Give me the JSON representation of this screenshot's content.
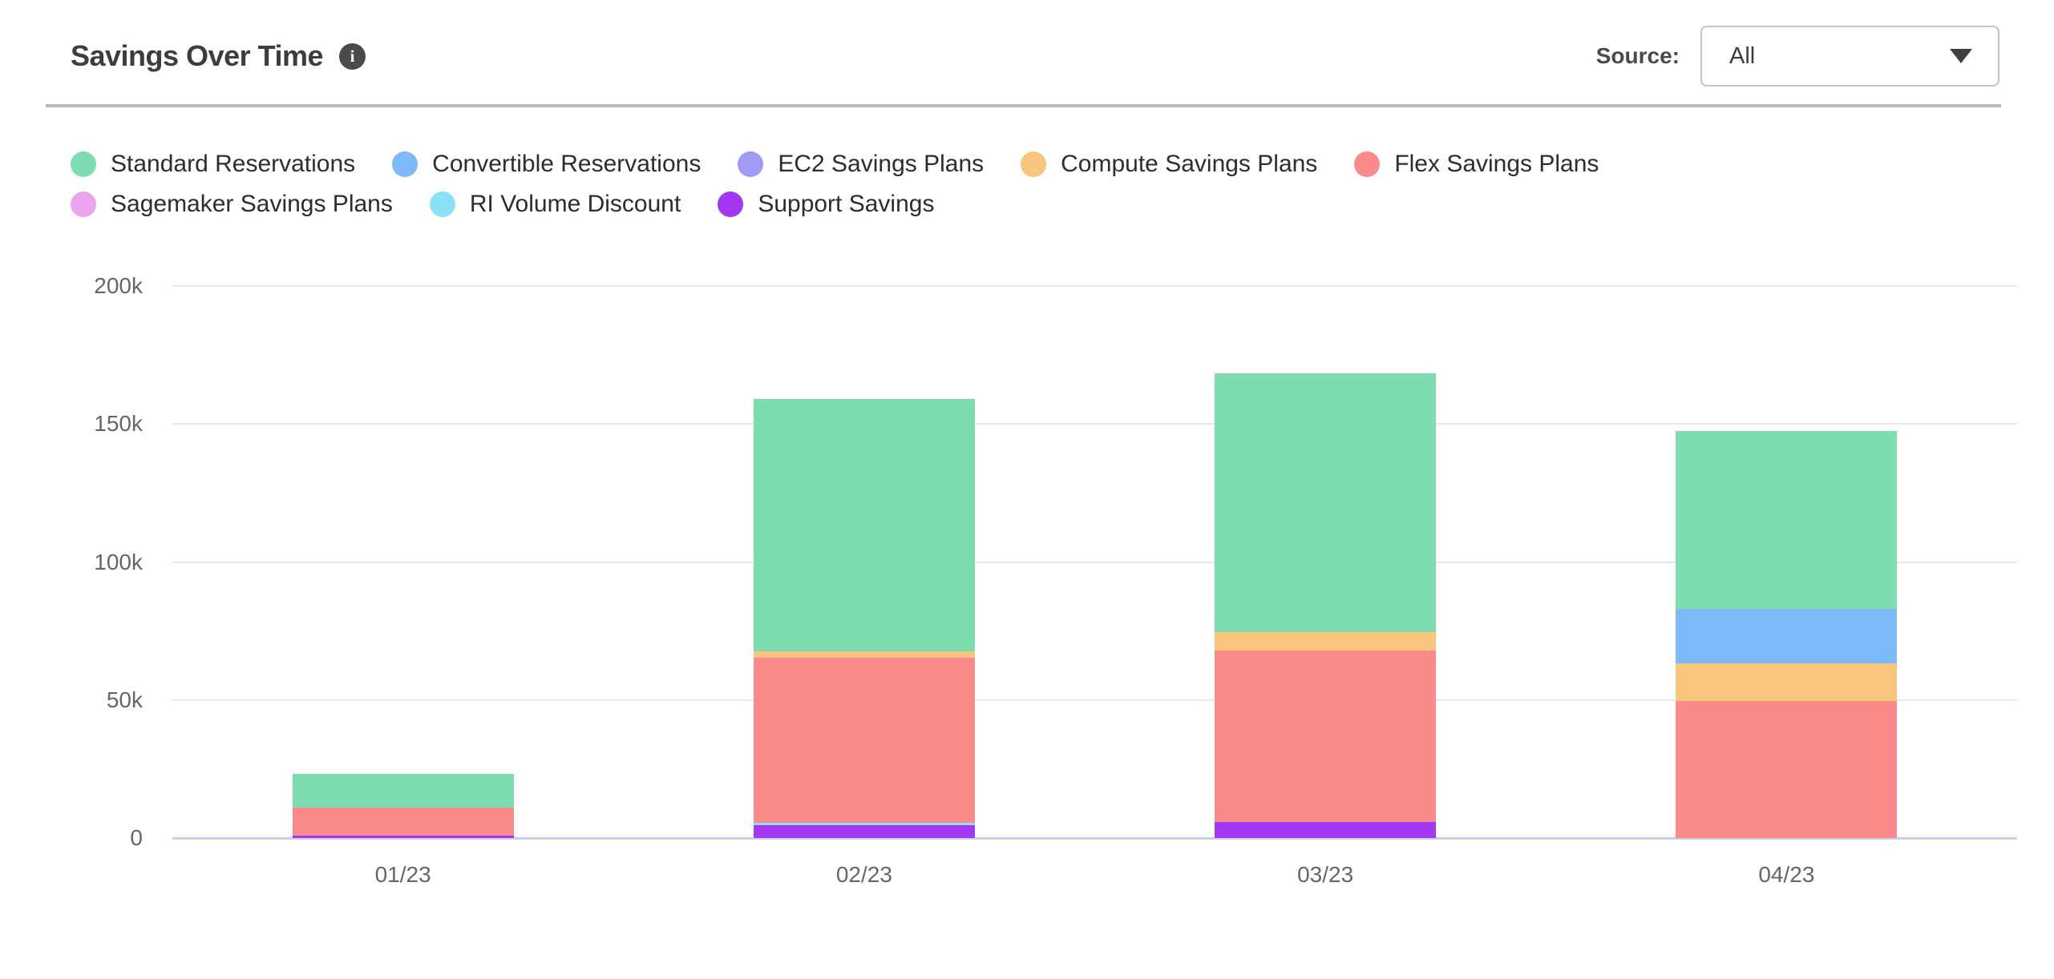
{
  "header": {
    "title": "Savings Over Time",
    "info_glyph": "i",
    "source_label": "Source:",
    "source_value": "All"
  },
  "legend": {
    "rows": [
      [
        "standard-reservations",
        "convertible-reservations",
        "ec2-savings-plans",
        "compute-savings-plans",
        "flex-savings-plans"
      ],
      [
        "sagemaker-savings-plans",
        "ri-volume-discount",
        "support-savings"
      ]
    ]
  },
  "chart_data": {
    "type": "bar",
    "stacked": true,
    "title": "Savings Over Time",
    "categories": [
      "01/23",
      "02/23",
      "03/23",
      "04/23"
    ],
    "series": [
      {
        "key": "standard-reservations",
        "name": "Standard Reservations",
        "color": "#7eddb0",
        "values": [
          12300,
          91500,
          93800,
          64500
        ]
      },
      {
        "key": "convertible-reservations",
        "name": "Convertible Reservations",
        "color": "#7ebaf7",
        "values": [
          0,
          0,
          0,
          19600
        ]
      },
      {
        "key": "ec2-savings-plans",
        "name": "EC2 Savings Plans",
        "color": "#a29bf5",
        "values": [
          0,
          0,
          0,
          0
        ]
      },
      {
        "key": "compute-savings-plans",
        "name": "Compute Savings Plans",
        "color": "#f7c57e",
        "values": [
          0,
          2100,
          6600,
          13700
        ]
      },
      {
        "key": "flex-savings-plans",
        "name": "Flex Savings Plans",
        "color": "#fb8b8b",
        "values": [
          10000,
          59900,
          62100,
          49700
        ]
      },
      {
        "key": "sagemaker-savings-plans",
        "name": "Sagemaker Savings Plans",
        "color": "#eca4ec",
        "values": [
          0,
          0,
          0,
          0
        ]
      },
      {
        "key": "ri-volume-discount",
        "name": "RI Volume Discount",
        "color": "#8be2f7",
        "values": [
          0,
          1000,
          0,
          0
        ]
      },
      {
        "key": "support-savings",
        "name": "Support Savings",
        "color": "#a238f2",
        "values": [
          1000,
          4500,
          5900,
          0
        ]
      }
    ],
    "stack_order_bottom_to_top": [
      "support-savings",
      "ri-volume-discount",
      "sagemaker-savings-plans",
      "flex-savings-plans",
      "compute-savings-plans",
      "ec2-savings-plans",
      "convertible-reservations",
      "standard-reservations"
    ],
    "totals": [
      23300,
      159000,
      168400,
      147500
    ],
    "yticks": [
      {
        "label": "200k",
        "value": 200000
      },
      {
        "label": "150k",
        "value": 150000
      },
      {
        "label": "100k",
        "value": 100000
      },
      {
        "label": "50k",
        "value": 50000
      },
      {
        "label": "0",
        "value": 0
      }
    ],
    "ylim": [
      0,
      200000
    ],
    "xlabel": "",
    "ylabel": "",
    "grid": true,
    "legend_position": "top-left"
  }
}
